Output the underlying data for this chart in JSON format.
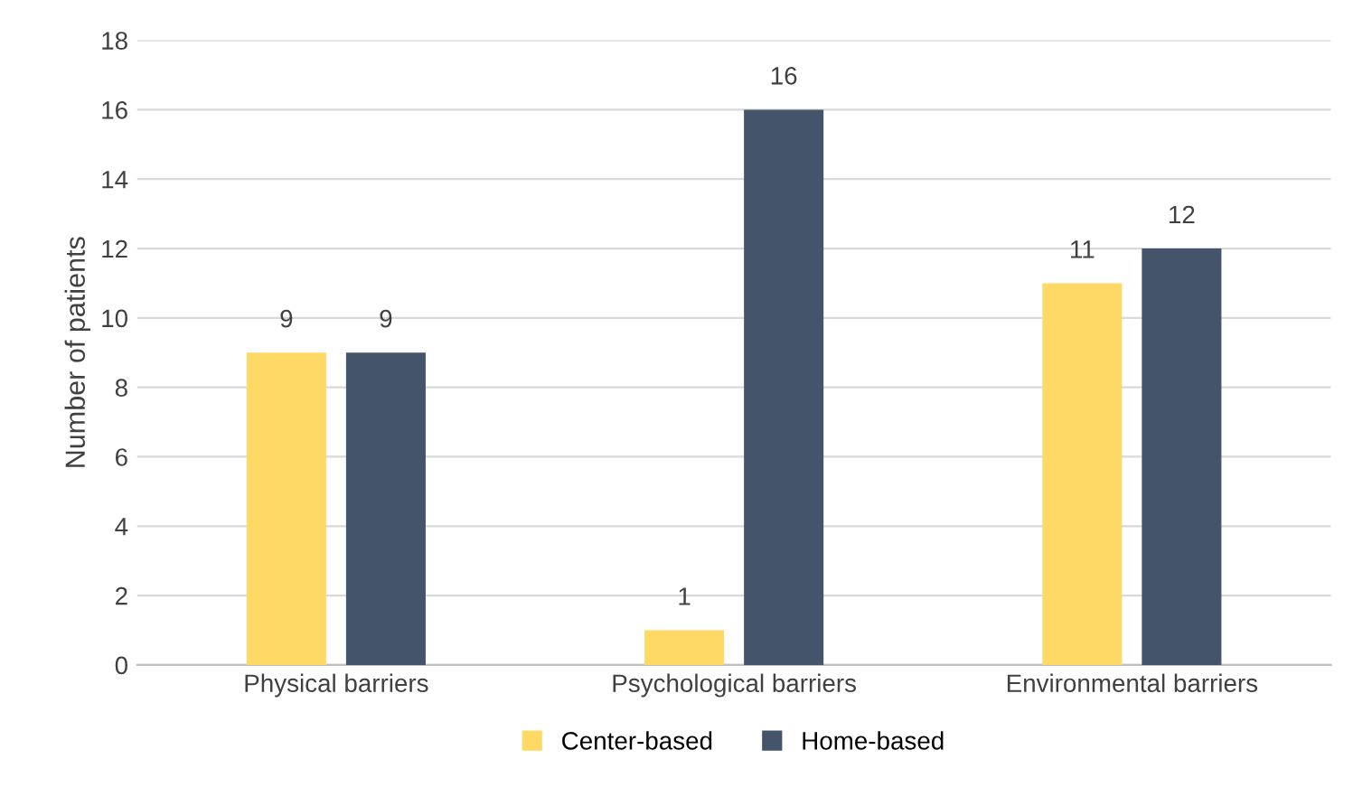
{
  "chart_data": {
    "type": "bar",
    "ylabel": "Number of patients",
    "categories": [
      "Physical barriers",
      "Psychological barriers",
      "Environmental barriers"
    ],
    "series": [
      {
        "name": "Center-based",
        "color": "#ffd966",
        "values": [
          9,
          1,
          11
        ]
      },
      {
        "name": "Home-based",
        "color": "#44546a",
        "values": [
          9,
          16,
          12
        ]
      }
    ],
    "ylim": [
      0,
      18
    ],
    "yticks": [
      0,
      2,
      4,
      6,
      8,
      10,
      12,
      14,
      16,
      18
    ],
    "grid": "y",
    "legend": "bottom",
    "data_labels": true
  }
}
